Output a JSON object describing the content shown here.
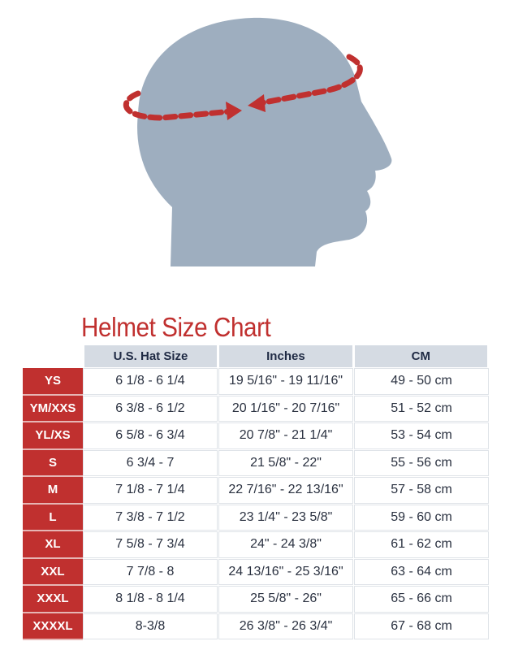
{
  "illustration": {
    "name": "head-circumference-diagram",
    "head_color": "#9eaebf",
    "arrow_color": "#c0302f"
  },
  "title": "Helmet Size Chart",
  "colors": {
    "accent": "#c0302f",
    "header_bg": "#d5dbe3"
  },
  "table": {
    "headers": [
      "",
      "U.S. Hat Size",
      "Inches",
      "CM"
    ],
    "rows": [
      [
        "YS",
        "6 1/8 - 6 1/4",
        "19 5/16\" - 19 11/16\"",
        "49 - 50 cm"
      ],
      [
        "YM/XXS",
        "6 3/8 - 6 1/2",
        "20 1/16\" - 20 7/16\"",
        "51 - 52 cm"
      ],
      [
        "YL/XS",
        "6 5/8 - 6 3/4",
        "20 7/8\" - 21 1/4\"",
        "53 - 54 cm"
      ],
      [
        "S",
        "6 3/4 - 7",
        "21 5/8\" - 22\"",
        "55 - 56 cm"
      ],
      [
        "M",
        "7 1/8 - 7 1/4",
        "22 7/16\" - 22 13/16\"",
        "57 - 58 cm"
      ],
      [
        "L",
        "7 3/8 - 7 1/2",
        "23 1/4\" - 23 5/8\"",
        "59 - 60 cm"
      ],
      [
        "XL",
        "7 5/8 - 7 3/4",
        "24\" - 24 3/8\"",
        "61 - 62 cm"
      ],
      [
        "XXL",
        "7 7/8 - 8",
        "24 13/16\" - 25 3/16\"",
        "63 - 64 cm"
      ],
      [
        "XXXL",
        "8 1/8 - 8 1/4",
        "25 5/8\" - 26\"",
        "65 - 66 cm"
      ],
      [
        "XXXXL",
        "8-3/8",
        "26 3/8\" - 26 3/4\"",
        "67 - 68 cm"
      ]
    ]
  }
}
